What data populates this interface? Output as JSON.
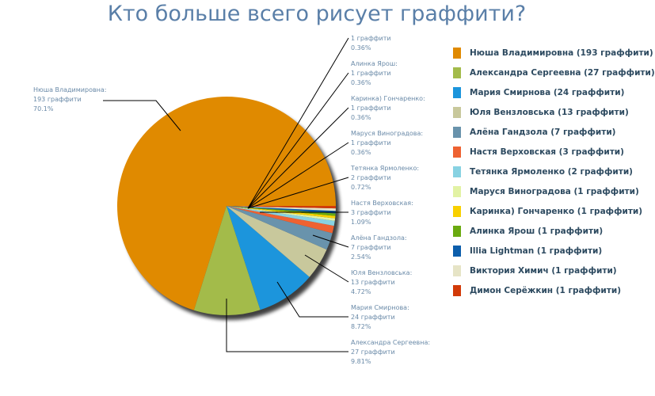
{
  "chart_data": {
    "type": "pie",
    "title": "Кто больше всего рисует граффити?",
    "unit": "граффити",
    "legend_position": "right",
    "series": [
      {
        "name": "Нюша Владимировна",
        "value": 193,
        "percent": "70.1%",
        "color": "#e08a00",
        "legend": "Нюша Владимировна (193 граффити)"
      },
      {
        "name": "Александра Сергеевна",
        "value": 27,
        "percent": "9.81%",
        "color": "#a3bb4a",
        "legend": "Александра Сергеевна (27 граффити)"
      },
      {
        "name": "Мария Смирнова",
        "value": 24,
        "percent": "8.72%",
        "color": "#1c95dc",
        "legend": "Мария Смирнова (24 граффити)"
      },
      {
        "name": "Юля Вензловська",
        "value": 13,
        "percent": "4.72%",
        "color": "#c8c89c",
        "legend": "Юля Вензловська (13 граффити)"
      },
      {
        "name": "Алёна Гандзола",
        "value": 7,
        "percent": "2.54%",
        "color": "#6993ac",
        "legend": "Алёна Гандзола (7 граффити)"
      },
      {
        "name": "Настя Верховская",
        "value": 3,
        "percent": "1.09%",
        "color": "#ee6232",
        "legend": "Настя Верховская (3 граффити)"
      },
      {
        "name": "Тетянка Ярмоленко",
        "value": 2,
        "percent": "0.72%",
        "color": "#88d2e2",
        "legend": "Тетянка Ярмоленко (2 граффити)"
      },
      {
        "name": "Маруся Виноградова",
        "value": 1,
        "percent": "0.36%",
        "color": "#e2f2a4",
        "legend": "Маруся Виноградова (1 граффити)"
      },
      {
        "name": "Каринка) Гончаренко",
        "value": 1,
        "percent": "0.36%",
        "color": "#f8d000",
        "legend": "Каринка) Гончаренко (1 граффити)"
      },
      {
        "name": "Алинка Ярош",
        "value": 1,
        "percent": "0.36%",
        "color": "#6aaa10",
        "legend": "Алинка Ярош (1 граффити)"
      },
      {
        "name": "Illia Lightman",
        "value": 1,
        "percent": "0.36%",
        "color": "#0c5eac",
        "legend": "Illia Lightman (1 граффити)"
      },
      {
        "name": "Виктория Химич",
        "value": 1,
        "percent": "0.36%",
        "color": "#e6e4c6",
        "legend": "Виктория Химич (1 граффити)"
      },
      {
        "name": "Димон Серёжкин",
        "value": 1,
        "percent": "0.36%",
        "color": "#d23a08",
        "legend": "Димон Серёжкин (1 граффити)"
      }
    ],
    "data_labels": [
      {
        "series": 0,
        "name": "Нюша Владимировна:",
        "count": "193 граффити",
        "percent": "70.1%"
      },
      {
        "series": 1,
        "name": "Александра Сергеевна:",
        "count": "27 граффити",
        "percent": "9.81%"
      },
      {
        "series": 2,
        "name": "Мария Смирнова:",
        "count": "24 граффити",
        "percent": "8.72%"
      },
      {
        "series": 3,
        "name": "Юля Вензловська:",
        "count": "13 граффити",
        "percent": "4.72%"
      },
      {
        "series": 4,
        "name": "Алёна Гандзола:",
        "count": "7 граффити",
        "percent": "2.54%"
      },
      {
        "series": 5,
        "name": "Настя Верховская:",
        "count": "3 граффити",
        "percent": "1.09%"
      },
      {
        "series": 6,
        "name": "Тетянка Ярмоленко:",
        "count": "2 граффити",
        "percent": "0.72%"
      },
      {
        "series": 7,
        "name": "Маруся Виноградова:",
        "count": "1 граффити",
        "percent": "0.36%"
      },
      {
        "series": 8,
        "name": "Каринка) Гончаренко:",
        "count": "1 граффити",
        "percent": "0.36%"
      },
      {
        "series": 9,
        "name": "Алинка Ярош:",
        "count": "1 граффити",
        "percent": "0.36%"
      },
      {
        "series": 10,
        "name": "",
        "count": "1 граффити",
        "percent": "0.36%"
      }
    ]
  }
}
